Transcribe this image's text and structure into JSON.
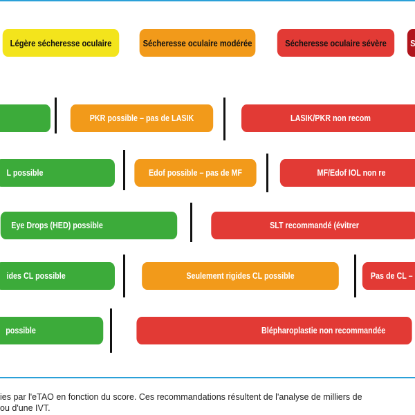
{
  "header": {
    "mild": "Légère sécheresse oculaire",
    "moderate": "Sécheresse oculaire modérée",
    "severe": "Sécheresse oculaire sévère",
    "extreme": "S"
  },
  "rows": {
    "r1": {
      "b": "PKR possible – pas de LASIK",
      "c": "LASIK/PKR non recom"
    },
    "r2": {
      "a": "L possible",
      "b": "Edof possible – pas de MF",
      "c": "MF/Edof IOL non re"
    },
    "r3": {
      "a": "Eye Drops (HED) possible",
      "b": "SLT recommandé (évitrer"
    },
    "r4": {
      "a": "ides CL possible",
      "b": "Seulement rigides CL possible",
      "c": "Pas de CL – s"
    },
    "r5": {
      "a": "possible",
      "b": "Blépharoplastie non recommandée"
    }
  },
  "caption": {
    "line1": "ies par l'eTAO en fonction du score. Ces recommandations résultent de l'analyse de milliers de",
    "line2": "ou d'une IVT."
  },
  "colors": {
    "green": "#3cab3a",
    "orange": "#f29a1a",
    "red": "#e23a35",
    "yellow": "#f3e41c",
    "dark_red": "#b0141b",
    "rule": "#2aa0d8"
  }
}
